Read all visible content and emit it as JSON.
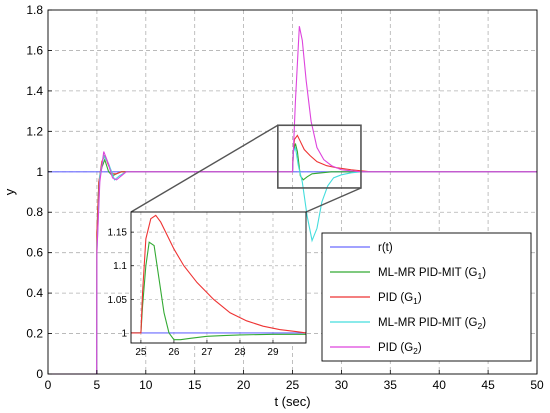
{
  "chart_data": {
    "type": "line",
    "xlabel": "t (sec)",
    "ylabel": "y",
    "xlim": [
      0,
      50
    ],
    "ylim": [
      0,
      1.8
    ],
    "xticks": [
      "0",
      "5",
      "10",
      "15",
      "20",
      "25",
      "30",
      "35",
      "40",
      "45",
      "50"
    ],
    "yticks": [
      "0",
      "0.2",
      "0.4",
      "0.6",
      "0.8",
      "1",
      "1.2",
      "1.4",
      "1.6",
      "1.8"
    ],
    "grid": true,
    "legend_position": "bottom-right",
    "series": [
      {
        "name": "r(t)",
        "color": "#6a6aff",
        "x": [
          0,
          50
        ],
        "y": [
          1,
          1
        ]
      },
      {
        "name": "ML-MR PID-MIT (G1)",
        "color": "#33aa33",
        "x": [
          0,
          4.98,
          5.0,
          5.2,
          5.5,
          5.8,
          6.2,
          6.6,
          7.0,
          7.5,
          8.0,
          25.0,
          25.05,
          25.1,
          25.3,
          25.5,
          25.8,
          26.1,
          26.5,
          27,
          28,
          29,
          30,
          32,
          50
        ],
        "y": [
          0,
          0,
          0.7,
          0.95,
          1.02,
          1.06,
          1.0,
          0.98,
          0.99,
          1.0,
          1.0,
          1.0,
          1.05,
          1.1,
          1.14,
          1.1,
          0.98,
          0.96,
          0.975,
          0.99,
          0.995,
          1.0,
          1.0,
          1.0,
          1.0
        ]
      },
      {
        "name": "PID (G1)",
        "color": "#ee3333",
        "x": [
          0,
          4.98,
          5.0,
          5.2,
          5.5,
          5.8,
          6.2,
          6.6,
          7.0,
          7.5,
          8.0,
          25.0,
          25.05,
          25.2,
          25.5,
          25.8,
          26.2,
          26.8,
          27.5,
          28.5,
          29.5,
          31,
          33,
          50
        ],
        "y": [
          0,
          0,
          0.7,
          0.95,
          1.05,
          1.08,
          1.03,
          0.99,
          0.99,
          1.0,
          1.0,
          1.0,
          1.08,
          1.16,
          1.18,
          1.15,
          1.11,
          1.08,
          1.05,
          1.03,
          1.02,
          1.01,
          1.0,
          1.0
        ]
      },
      {
        "name": "ML-MR PID-MIT (G2)",
        "color": "#44dddd",
        "x": [
          0,
          4.98,
          5.0,
          5.3,
          5.7,
          6.2,
          6.8,
          7.3,
          8.0,
          25.0,
          25.1,
          25.3,
          25.6,
          26.0,
          26.5,
          27.0,
          27.5,
          28.0,
          28.6,
          29.2,
          30,
          31,
          32,
          33,
          50
        ],
        "y": [
          0,
          0,
          0.6,
          0.98,
          1.08,
          1.04,
          0.96,
          0.98,
          1.0,
          1.0,
          1.1,
          1.12,
          1.03,
          0.95,
          0.78,
          0.66,
          0.72,
          0.85,
          0.93,
          0.97,
          0.985,
          0.995,
          1.0,
          1.0,
          1.0
        ]
      },
      {
        "name": "PID (G2)",
        "color": "#dd44dd",
        "x": [
          0,
          4.98,
          5.0,
          5.3,
          5.7,
          6.1,
          6.6,
          7.0,
          7.5,
          8.0,
          25.0,
          25.3,
          25.7,
          26.0,
          26.4,
          26.9,
          27.5,
          28.2,
          29.0,
          30,
          31,
          32,
          50
        ],
        "y": [
          0,
          0,
          0.6,
          0.95,
          1.1,
          1.05,
          0.97,
          0.96,
          0.98,
          1.0,
          1.0,
          1.35,
          1.72,
          1.65,
          1.45,
          1.25,
          1.12,
          1.06,
          1.03,
          1.01,
          1.005,
          1.0,
          1.0
        ]
      }
    ],
    "inset": {
      "xlim": [
        24.7,
        30.0
      ],
      "ylim": [
        0.985,
        1.18
      ],
      "xticks": [
        "25",
        "26",
        "27",
        "28",
        "29"
      ],
      "yticks": [
        "1",
        "1.05",
        "1.1",
        "1.15"
      ],
      "zoom_region": {
        "x": [
          23.5,
          32.0
        ],
        "y": [
          0.92,
          1.23
        ]
      },
      "series": [
        {
          "color": "#6a6aff",
          "x": [
            24.7,
            30.0
          ],
          "y": [
            1,
            1
          ]
        },
        {
          "color": "#33aa33",
          "x": [
            24.7,
            25.0,
            25.05,
            25.15,
            25.25,
            25.4,
            25.55,
            25.7,
            25.85,
            26.0,
            26.2,
            26.5,
            27.0,
            27.5,
            28.0,
            29.0,
            30.0
          ],
          "y": [
            1.0,
            1.0,
            1.04,
            1.1,
            1.135,
            1.13,
            1.08,
            1.03,
            1.0,
            0.99,
            0.99,
            0.992,
            0.995,
            0.996,
            0.997,
            0.998,
            0.998
          ]
        },
        {
          "color": "#ee3333",
          "x": [
            24.7,
            25.0,
            25.05,
            25.15,
            25.3,
            25.45,
            25.6,
            25.8,
            26.0,
            26.3,
            26.7,
            27.2,
            27.7,
            28.2,
            28.7,
            29.2,
            29.7,
            30.0
          ],
          "y": [
            1.0,
            1.0,
            1.06,
            1.14,
            1.17,
            1.175,
            1.165,
            1.145,
            1.125,
            1.1,
            1.075,
            1.05,
            1.03,
            1.018,
            1.01,
            1.005,
            1.002,
            1.0
          ]
        }
      ]
    },
    "legend": [
      "r(t)",
      "ML-MR PID-MIT (G",
      "PID (G",
      "ML-MR PID-MIT (G",
      "PID (G"
    ],
    "legend_sub": [
      "",
      "1",
      "1",
      "2",
      "2"
    ],
    "legend_tail": [
      "",
      ")",
      ")",
      ")",
      ")"
    ]
  }
}
